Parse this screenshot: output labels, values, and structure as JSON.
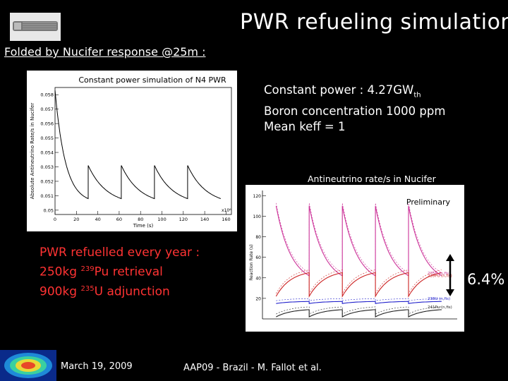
{
  "slide": {
    "title": "PWR refueling simulation",
    "subtitle": "Folded by Nucifer response @25m :",
    "info": {
      "power_label": "Constant power : 4.27GW",
      "power_sub": "th",
      "boron": "Boron concentration 1000 ppm",
      "keff": "Mean keff = 1"
    },
    "refuel": {
      "line1": "PWR refuelled every year :",
      "pu_mass": "250kg ",
      "pu_iso": "239",
      "pu_text": "Pu retrieval",
      "u_mass": "900kg ",
      "u_iso": "235",
      "u_text": "U  adjunction"
    },
    "delta": "6.4%",
    "footer_date": "March 19, 2009",
    "footer_conf": "AAP09 - Brazil - M. Fallot et al."
  },
  "chart_data": [
    {
      "type": "line",
      "title": "Constant power simulation of N4 PWR",
      "xlabel": "Time (s)",
      "ylabel": "Absolute Antineutrino Rate/s in Nucifer",
      "x_exponent_label": "x10⁶",
      "x_ticks": [
        "0",
        "20",
        "40",
        "60",
        "80",
        "100",
        "120",
        "140",
        "160"
      ],
      "y_ticks": [
        "0.05",
        "0.051",
        "0.052",
        "0.053",
        "0.054",
        "0.055",
        "0.056",
        "0.057",
        "0.058"
      ],
      "xlim": [
        0,
        165
      ],
      "ylim": [
        0.0497,
        0.0585
      ],
      "cycles": [
        {
          "x_start": 0,
          "x_end": 31,
          "y_start": 0.0583,
          "y_end": 0.0508
        },
        {
          "x_start": 31,
          "x_end": 62,
          "y_start": 0.0531,
          "y_end": 0.0508
        },
        {
          "x_start": 62,
          "x_end": 93,
          "y_start": 0.0531,
          "y_end": 0.0508
        },
        {
          "x_start": 93,
          "x_end": 124,
          "y_start": 0.0531,
          "y_end": 0.0508
        },
        {
          "x_start": 124,
          "x_end": 155,
          "y_start": 0.0531,
          "y_end": 0.0508
        }
      ]
    },
    {
      "type": "line",
      "title": "Antineutrino rate/s in Nucifer",
      "annotation": "Preliminary",
      "ylabel": "Reaction Rate (s)",
      "y_ticks": [
        "120",
        "100",
        "80",
        "60",
        "40",
        "20"
      ],
      "ylim": [
        0,
        125
      ],
      "xlim": [
        0,
        5
      ],
      "series": [
        {
          "name": "235U (n,fis)",
          "color": "#cc3399",
          "cycles": {
            "start": 110,
            "end": 42
          }
        },
        {
          "name": "239Pu (n,fis)",
          "color": "#cc2222",
          "cycles": {
            "start": 22,
            "end": 45
          }
        },
        {
          "name": "238U (n,fis)",
          "color": "#2222cc",
          "cycles": {
            "start": 15,
            "end": 17
          }
        },
        {
          "name": "241Pu (n,fis)",
          "color": "#222222",
          "cycles": {
            "start": 2,
            "end": 9
          }
        }
      ]
    }
  ]
}
